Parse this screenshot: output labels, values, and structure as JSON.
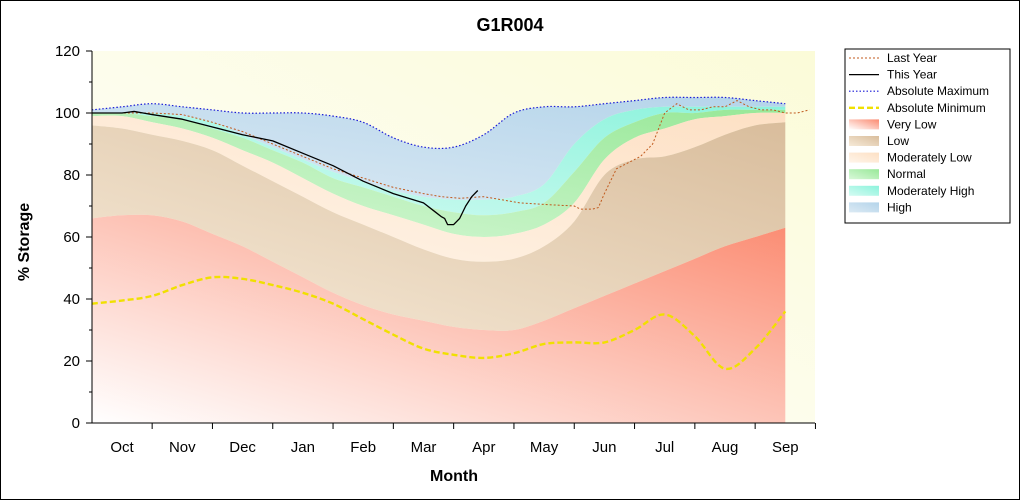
{
  "chart_data": {
    "type": "area",
    "title": "G1R004",
    "xlabel": "Month",
    "ylabel": "% Storage",
    "ylim": [
      0,
      120
    ],
    "yticks": [
      0,
      20,
      40,
      60,
      80,
      100,
      120
    ],
    "categories": [
      "Oct",
      "Nov",
      "Dec",
      "Jan",
      "Feb",
      "Mar",
      "Apr",
      "May",
      "Jun",
      "Jul",
      "Aug",
      "Sep"
    ],
    "x_month_index": [
      0,
      1,
      2,
      3,
      4,
      5,
      6,
      7,
      8,
      9,
      10,
      11
    ],
    "grid": false,
    "legend_position": "right",
    "colors": {
      "plot_background": "#fdfde4",
      "very_low": "#fb8a70",
      "low": "#d9bd9c",
      "moderately_low": "#fde0c4",
      "normal": "#98e898",
      "moderately_high": "#8cf3dc",
      "high": "#b4d4ea",
      "last_year": "#c05a1e",
      "this_year": "#000000",
      "abs_max": "#1a1ad6",
      "abs_min": "#f0e000"
    },
    "bands": {
      "x": [
        -0.5,
        0,
        0.5,
        1,
        1.5,
        2,
        2.5,
        3,
        3.5,
        4,
        4.5,
        5,
        5.5,
        6,
        6.5,
        7,
        7.5,
        8,
        8.5,
        9,
        9.5,
        10,
        10.5,
        11
      ],
      "very_low_upper": [
        66,
        67,
        67,
        65,
        61,
        57,
        52,
        47,
        42,
        38,
        35,
        33,
        31,
        30,
        30,
        33,
        37,
        41,
        45,
        49,
        53,
        57,
        60,
        63
      ],
      "low_upper": [
        96,
        95,
        93,
        91,
        88,
        83,
        78,
        73,
        68,
        64,
        60,
        56,
        53,
        52,
        53,
        57,
        65,
        80,
        85,
        86,
        89,
        93,
        96,
        97
      ],
      "moderately_low_upper": [
        99,
        99,
        97,
        95,
        92,
        88,
        84,
        79,
        74,
        70,
        67,
        64,
        61,
        60,
        61,
        64,
        71,
        85,
        92,
        95,
        98,
        99,
        100,
        100
      ],
      "normal_upper": [
        100,
        100,
        99,
        98,
        95,
        92,
        88,
        84,
        79,
        76,
        73,
        70,
        68,
        67,
        68,
        71,
        81,
        92,
        97,
        100,
        100,
        101,
        101,
        101
      ],
      "moderately_high_upper": [
        100,
        100,
        100,
        99,
        97,
        93,
        89,
        85,
        81,
        78,
        75,
        73,
        72,
        72,
        73,
        77,
        90,
        98,
        101,
        102,
        102,
        102,
        102,
        102
      ],
      "high_upper": [
        101,
        102,
        103,
        102,
        101,
        100,
        100,
        100,
        99,
        97,
        92,
        89,
        89,
        93,
        100,
        102,
        102,
        103,
        104,
        105,
        105,
        105,
        104,
        103
      ]
    },
    "series": [
      {
        "name": "Last Year",
        "style": "dotted",
        "x": [
          -0.5,
          -0.4,
          -0.2,
          0,
          0.2,
          0.5,
          1,
          1.5,
          2,
          2.5,
          3,
          3.5,
          4,
          4.5,
          5,
          5.3,
          5.6,
          6,
          6.3,
          6.6,
          7,
          7.5,
          7.6,
          7.8,
          7.9,
          8,
          8.2,
          8.4,
          8.6,
          8.7,
          8.8,
          9,
          9.2,
          9.4,
          9.6,
          9.8,
          10,
          10.2,
          10.4,
          10.6,
          10.8,
          11,
          11.2,
          11.4
        ],
        "y": [
          100,
          100,
          100,
          100,
          100,
          100,
          99.5,
          97,
          94,
          90,
          86,
          82,
          79,
          76,
          74,
          73,
          72.5,
          73,
          72,
          71,
          70.5,
          70,
          69,
          69,
          69.5,
          74,
          82,
          84,
          86,
          88,
          90,
          100,
          103,
          101,
          101,
          102,
          102,
          104,
          102,
          101,
          101,
          100,
          100,
          101
        ]
      },
      {
        "name": "This Year",
        "style": "solid",
        "x": [
          -0.5,
          -0.4,
          -0.2,
          0,
          0.2,
          0.35,
          0.5,
          1,
          1.5,
          2,
          2.5,
          3,
          3.5,
          4,
          4.5,
          5,
          5.2,
          5.3,
          5.35,
          5.4,
          5.5,
          5.6,
          5.7,
          5.8,
          5.9
        ],
        "y": [
          100,
          100,
          100,
          100,
          100.5,
          100,
          99.5,
          98,
          95.5,
          93,
          91,
          87,
          83,
          78,
          74,
          71,
          68,
          66.5,
          66,
          64,
          64,
          66,
          70,
          73,
          75
        ]
      },
      {
        "name": "Absolute Maximum",
        "style": "dotted",
        "x": [
          -0.5,
          0,
          0.5,
          1,
          1.5,
          2,
          2.5,
          3,
          3.5,
          4,
          4.5,
          5,
          5.5,
          6,
          6.5,
          7,
          7.5,
          8,
          8.5,
          9,
          9.5,
          10,
          10.5,
          11
        ],
        "y": [
          101,
          102,
          103,
          102,
          101,
          100,
          100,
          100,
          99,
          97,
          92,
          89,
          89,
          93,
          100,
          102,
          102,
          103,
          104,
          105,
          105,
          105,
          104,
          103
        ]
      },
      {
        "name": "Absolute Minimum",
        "style": "dashed",
        "x": [
          -0.5,
          0,
          0.5,
          1,
          1.5,
          2,
          2.5,
          3,
          3.5,
          4,
          4.5,
          5,
          5.5,
          6,
          6.5,
          7,
          7.5,
          8,
          8.5,
          9,
          9.5,
          10,
          10.5,
          11
        ],
        "y": [
          38.5,
          39.5,
          41,
          44.5,
          47,
          46.5,
          44.5,
          42,
          38.5,
          33.5,
          28.5,
          24,
          22,
          21,
          22.5,
          25.5,
          26,
          26,
          30,
          35,
          28,
          17.5,
          24,
          36
        ]
      }
    ],
    "legend": [
      {
        "label": "Last Year",
        "kind": "line",
        "key": "last_year"
      },
      {
        "label": "This Year",
        "kind": "line",
        "key": "this_year"
      },
      {
        "label": "Absolute Maximum",
        "kind": "line",
        "key": "abs_max"
      },
      {
        "label": "Absolute Minimum",
        "kind": "line",
        "key": "abs_min"
      },
      {
        "label": "Very Low",
        "kind": "area",
        "key": "very_low"
      },
      {
        "label": "Low",
        "kind": "area",
        "key": "low"
      },
      {
        "label": "Moderately Low",
        "kind": "area",
        "key": "moderately_low"
      },
      {
        "label": "Normal",
        "kind": "area",
        "key": "normal"
      },
      {
        "label": "Moderately High",
        "kind": "area",
        "key": "moderately_high"
      },
      {
        "label": "High",
        "kind": "area",
        "key": "high"
      }
    ]
  }
}
